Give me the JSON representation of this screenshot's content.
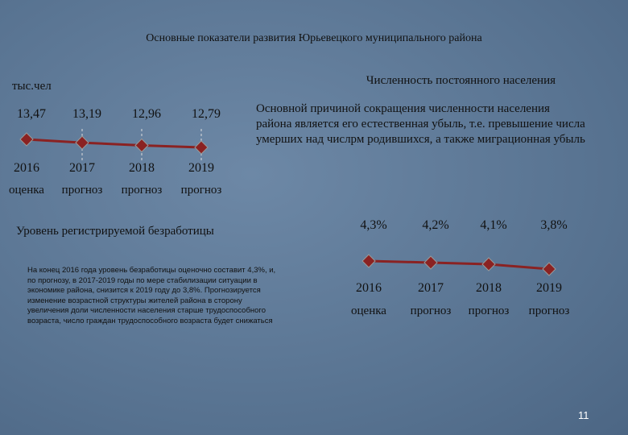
{
  "title": "Основные показатели развития Юрьевецкого муниципального района",
  "chart_data": [
    {
      "type": "line",
      "title": "Численность постоянного населения",
      "unit": "тыс.чел",
      "categories": [
        "2016",
        "2017",
        "2018",
        "2019"
      ],
      "category_notes": [
        "оценка",
        "прогноз",
        "прогноз",
        "прогноз"
      ],
      "values": [
        13.47,
        13.19,
        12.96,
        12.79
      ],
      "value_labels": [
        "13,47",
        "13,19",
        "12,96",
        "12,79"
      ],
      "color": "#8a2222"
    },
    {
      "type": "line",
      "title": "Уровень регистрируемой безработицы",
      "categories": [
        "2016",
        "2017",
        "2018",
        "2019"
      ],
      "category_notes": [
        "оценка",
        "прогноз",
        "прогноз",
        "прогноз"
      ],
      "values": [
        4.3,
        4.2,
        4.1,
        3.8
      ],
      "value_labels": [
        "4,3%",
        "4,2%",
        "4,1%",
        "3,8%"
      ],
      "color": "#8a2222"
    }
  ],
  "population_comment": "Основной причиной сокращения численности населения района является его естественная убыль, т.е. превышение числа умерших над числрм родившихся, а также миграционная убыль",
  "unemployment_comment": "На конец 2016 года уровень безработицы оценочно составит 4,3%, и, по прогнозу, в 2017-2019 годы по мере стабилизации ситуации в экономике района, снизится к 2019 году до 3,8%. Прогнозируется изменение возрастной структуры жителей района в сторону увеличения доли численности населения старше трудоспособного возраста, число граждан трудоспособного возраста будет снижаться",
  "page_number": "11"
}
